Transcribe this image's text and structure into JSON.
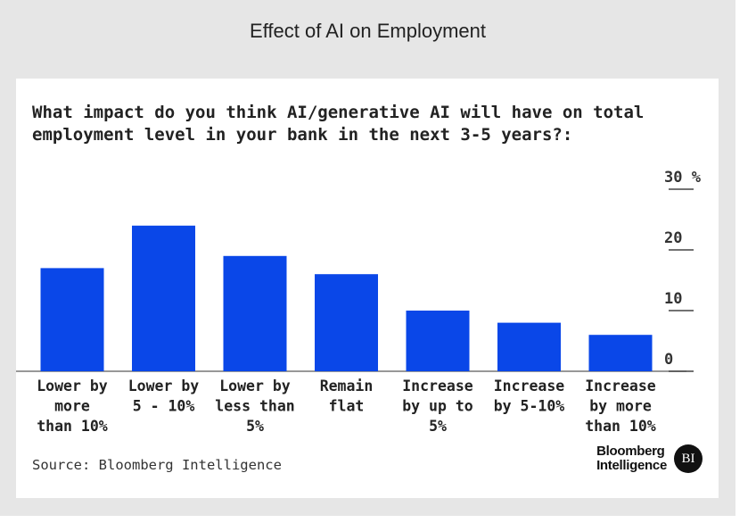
{
  "header": {
    "title": "Effect of AI on Employment"
  },
  "chart_data": {
    "type": "bar",
    "title": "What impact do you think AI/generative AI will have on total employment level in your bank in the next 3-5 years?:",
    "categories": [
      [
        "Lower by",
        "more",
        "than 10%"
      ],
      [
        "Lower by",
        "5 - 10%"
      ],
      [
        "Lower by",
        "less than",
        "5%"
      ],
      [
        "Remain",
        "flat"
      ],
      [
        "Increase",
        "by up to",
        "5%"
      ],
      [
        "Increase",
        "by 5-10%"
      ],
      [
        "Increase",
        "by more",
        "than 10%"
      ]
    ],
    "values": [
      17,
      24,
      19,
      16,
      10,
      8,
      6
    ],
    "ylim": [
      0,
      30
    ],
    "yticks": [
      0,
      10,
      20,
      30
    ],
    "ytick_labels": [
      "0",
      "10",
      "20",
      "30 %"
    ],
    "bar_color": "#0a47e8",
    "axis_side": "right",
    "grid": false
  },
  "footer": {
    "source": "Source: Bloomberg Intelligence",
    "logo_line1": "Bloomberg",
    "logo_line2": "Intelligence",
    "badge": "BI"
  }
}
